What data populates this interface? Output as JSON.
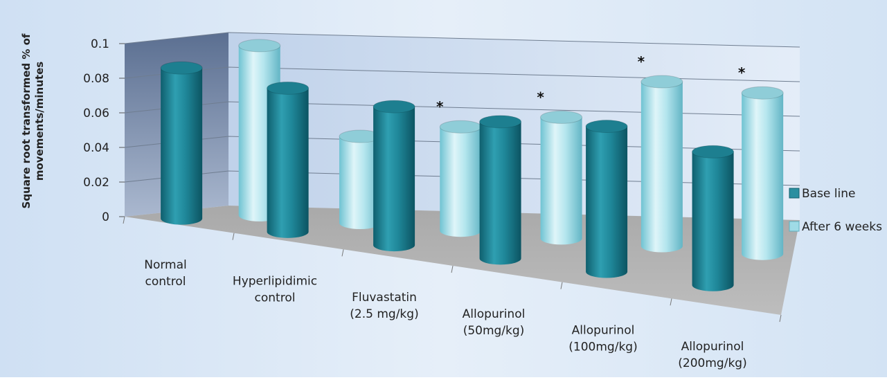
{
  "chart_data": {
    "type": "bar",
    "subtype": "3d-cylinder",
    "title": "",
    "xlabel": "",
    "ylabel": "Square root transformed % of movements/minutes",
    "ylim": [
      0,
      0.1
    ],
    "yticks": [
      "0",
      "0.02",
      "0.04",
      "0.06",
      "0.08",
      "0.1"
    ],
    "categories": [
      [
        "Normal",
        "control"
      ],
      [
        "Hyperlipidimic",
        "control"
      ],
      [
        "Fluvastatin",
        "(2.5 mg/kg)"
      ],
      [
        "Allopurinol",
        "(50mg/kg)"
      ],
      [
        "Allopurinol",
        "(100mg/kg)"
      ],
      [
        "Allopurinol",
        "(200mg/kg)"
      ]
    ],
    "series": [
      {
        "name": "Base line",
        "color": "#2b8fa0",
        "values": [
          0.087,
          0.083,
          0.08,
          0.079,
          0.084,
          0.077
        ]
      },
      {
        "name": "After 6 weeks",
        "color": "#9fdbe6",
        "values": [
          0.098,
          0.05,
          0.06,
          0.07,
          0.095,
          0.093
        ]
      }
    ],
    "significance": [
      false,
      false,
      true,
      true,
      true,
      true
    ],
    "significance_marker": "*",
    "legend_position": "right",
    "grid": true
  }
}
